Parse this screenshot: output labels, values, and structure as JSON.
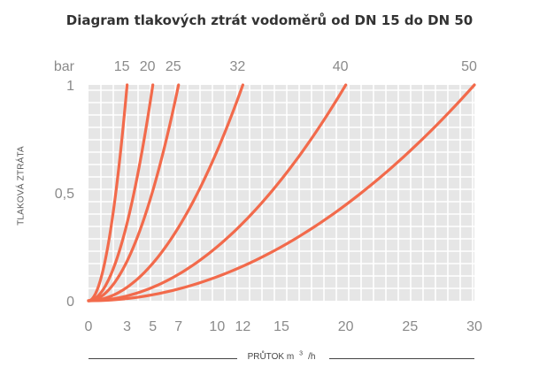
{
  "chart_data": {
    "type": "line",
    "title": "Diagram tlakových ztrát vodoměrů od DN 15 do DN 50",
    "ylabel": "TLAKOVÁ ZTRÁTA",
    "xlabel_main": "PRŮTOK m",
    "xlabel_sup": "3",
    "xlabel_tail": "/h",
    "y_unit": "bar",
    "x_ticks": [
      "0",
      "3",
      "5",
      "7",
      "10",
      "12",
      "15",
      "20",
      "25",
      "30"
    ],
    "y_ticks": [
      "0",
      "0,5",
      "1"
    ],
    "xlim": [
      0,
      30
    ],
    "ylim": [
      0,
      1
    ],
    "grid": true,
    "series": [
      {
        "name": "15",
        "max_flow": 3
      },
      {
        "name": "20",
        "max_flow": 5
      },
      {
        "name": "25",
        "max_flow": 7
      },
      {
        "name": "32",
        "max_flow": 12
      },
      {
        "name": "40",
        "max_flow": 20
      },
      {
        "name": "50",
        "max_flow": 30
      }
    ],
    "colors": {
      "curve": "#f26a4b",
      "grid_bg": "#e6e6e6",
      "grid_line": "#ffffff",
      "axis_text": "#8a8a8a"
    }
  }
}
